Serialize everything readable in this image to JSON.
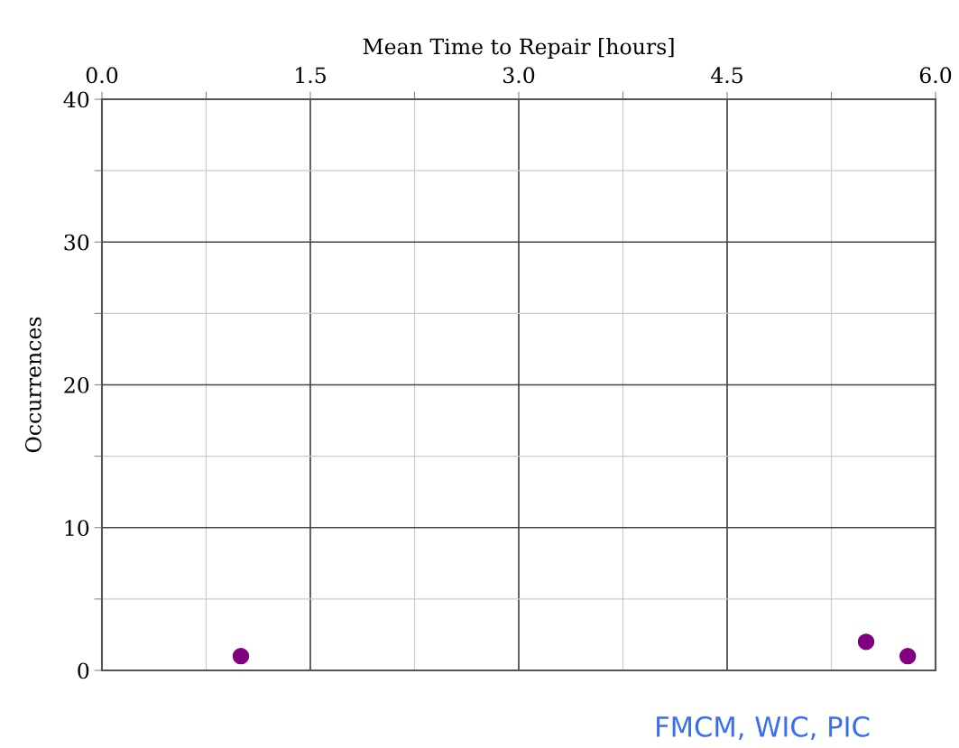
{
  "chart_data": {
    "type": "scatter",
    "xlabel": "Mean Time to Repair [hours]",
    "ylabel": "Occurrences",
    "x": [
      1.0,
      5.5,
      5.8
    ],
    "series": [
      {
        "color": "#800080",
        "values": [
          1,
          2,
          1
        ]
      }
    ],
    "xlim": [
      0,
      6
    ],
    "xticks": [
      {
        "value": 0,
        "label": "0.0"
      },
      {
        "value": 0.75,
        "label": null
      },
      {
        "value": 1.5,
        "label": "1.5"
      },
      {
        "value": 2.25,
        "label": null
      },
      {
        "value": 3,
        "label": "3.0"
      },
      {
        "value": 3.75,
        "label": null
      },
      {
        "value": 4.5,
        "label": "4.5"
      },
      {
        "value": 5.25,
        "label": null
      },
      {
        "value": 6,
        "label": "6.0"
      }
    ],
    "ylim": [
      0,
      40
    ],
    "yticks": [
      0,
      {
        "value": 5,
        "label": null
      },
      10,
      {
        "value": 15,
        "label": null
      },
      20,
      {
        "value": 25,
        "label": null
      },
      30,
      {
        "value": 35,
        "label": null
      },
      40
    ],
    "grid": true,
    "marker": "circle",
    "annotations": [
      "FMCM, WIC, PIC"
    ]
  }
}
